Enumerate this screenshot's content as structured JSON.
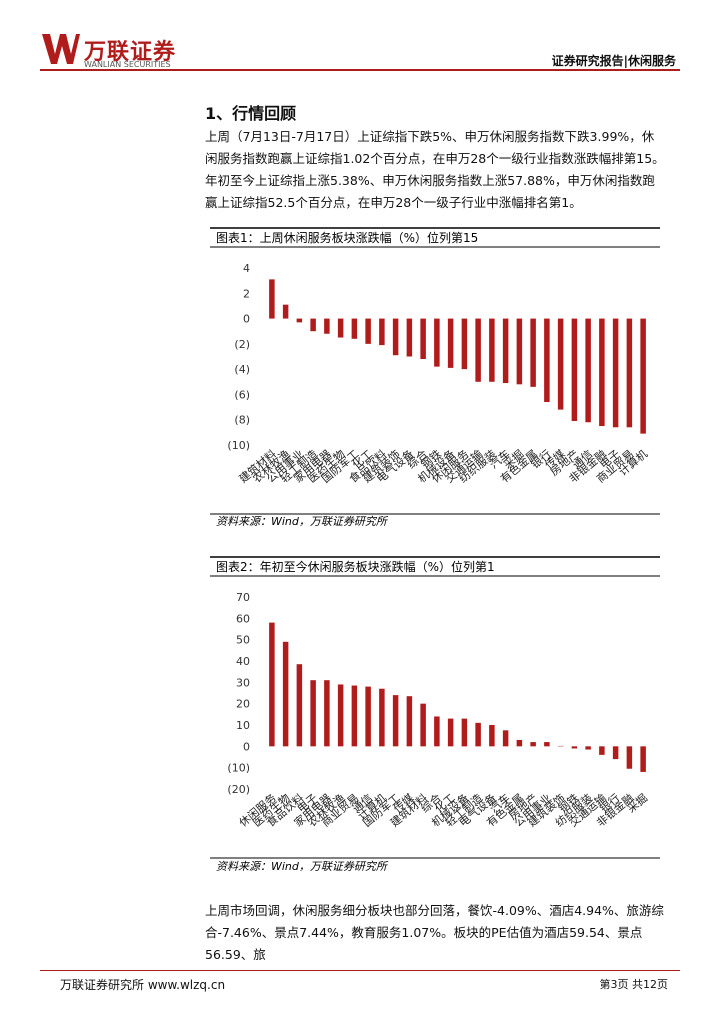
{
  "header": {
    "brand": "万联证券",
    "brand_en": "WANLIAN SECURITIES",
    "report_tag": "证券研究报告|休闲服务"
  },
  "section_title": "1、行情回顾",
  "paragraphs": [
    "上周（7月13日-7月17日）上证综指下跌5%、申万休闲服务指数下跌3.99%，休闲服务指数跑赢上证综指1.02个百分点，在申万28个一级行业指数涨跌幅排第15。年初至今上证综指上涨5.38%、申万休闲服务指数上涨57.88%，申万休闲指数跑赢上证综指52.5个百分点，在申万28个一级子行业中涨幅排名第1。",
    "上周市场回调，休闲服务细分板块也部分回落，餐饮-4.09%、酒店4.94%、旅游综合-7.46%、景点7.44%，教育服务1.07%。板块的PE估值为酒店59.54、景点56.59、旅"
  ],
  "chart_data": [
    {
      "type": "bar",
      "title": "图表1：上周休闲服务板块涨跌幅（%）位列第15",
      "source": "资料来源：Wind，万联证券研究所",
      "color": "#b01c1c",
      "categories": [
        "建筑材料",
        "农林牧渔",
        "公用事业",
        "轻工制造",
        "家用电器",
        "医药生物",
        "国防军工",
        "化工",
        "食品饮料",
        "建筑装饰",
        "电气设备",
        "综合",
        "钢铁",
        "机械设备",
        "休闲服务",
        "交通运输",
        "纺织服装",
        "汽车",
        "采掘",
        "有色金属",
        "银行",
        "传媒",
        "房地产",
        "通信",
        "非银金融",
        "电子",
        "商业贸易",
        "计算机"
      ],
      "values": [
        3.1,
        1.1,
        -0.3,
        -1.0,
        -1.2,
        -1.5,
        -1.6,
        -2.0,
        -2.1,
        -2.9,
        -3.0,
        -3.2,
        -3.8,
        -3.9,
        -4.0,
        -5.0,
        -5.0,
        -5.1,
        -5.2,
        -5.4,
        -6.6,
        -7.2,
        -8.1,
        -8.2,
        -8.5,
        -8.6,
        -8.6,
        -9.1
      ],
      "ylim": [
        -10,
        4
      ],
      "yticks": [
        {
          "value": -10,
          "label": "(10)"
        },
        {
          "value": -8,
          "label": "(8)"
        },
        {
          "value": -6,
          "label": "(6)"
        },
        {
          "value": -4,
          "label": "(4)"
        },
        {
          "value": -2,
          "label": "(2)"
        },
        0,
        2,
        4
      ]
    },
    {
      "type": "bar",
      "title": "图表2：年初至今休闲服务板块涨跌幅（%）位列第1",
      "source": "资料来源：Wind，万联证券研究所",
      "color": "#b01c1c",
      "categories": [
        "休闲服务",
        "医药生物",
        "食品饮料",
        "电子",
        "家用电器",
        "农林牧渔",
        "商业贸易",
        "通信",
        "计算机",
        "国防军工",
        "传媒",
        "建筑材料",
        "综合",
        "化工",
        "机械设备",
        "轻工制造",
        "电气设备",
        "汽车",
        "有色金属",
        "房地产",
        "公用事业",
        "建筑装饰",
        "钢铁",
        "纺织服装",
        "交通运输",
        "银行",
        "非银金融",
        "采掘"
      ],
      "values": [
        58,
        49,
        38.5,
        31,
        31,
        29,
        28.5,
        28,
        27,
        24,
        23.5,
        20,
        14,
        13,
        13,
        11,
        10,
        7.5,
        3,
        2,
        2,
        0.2,
        -1,
        -1.5,
        -4,
        -6,
        -10.5,
        -12
      ],
      "ylim": [
        -20,
        70
      ],
      "yticks": [
        {
          "value": -20,
          "label": "(20)"
        },
        {
          "value": -10,
          "label": "(10)"
        },
        0,
        10,
        20,
        30,
        40,
        50,
        60,
        70
      ]
    }
  ],
  "footer": {
    "left": "万联证券研究所 www.wlzq.cn",
    "right": "第3页 共12页"
  }
}
